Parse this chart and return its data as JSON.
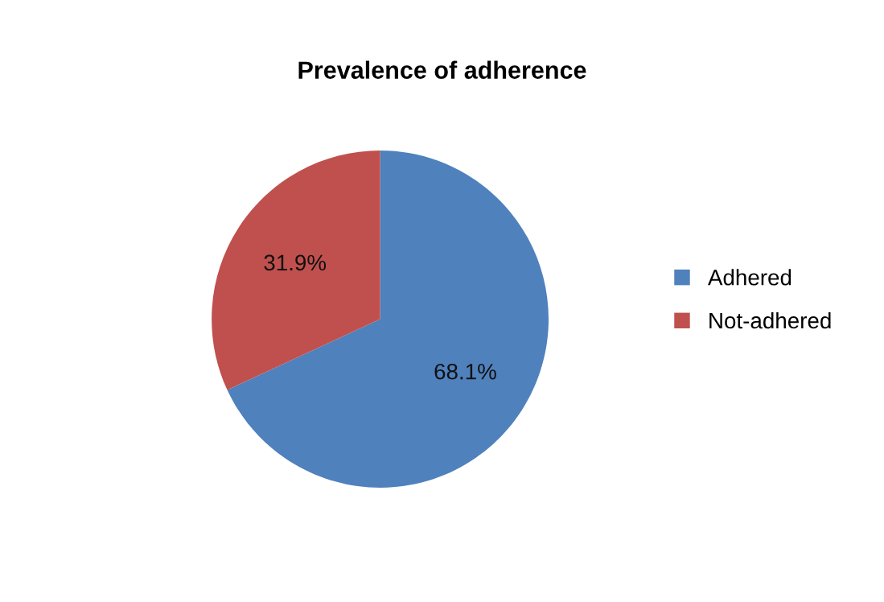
{
  "chart_data": {
    "type": "pie",
    "title": "Prevalence of adherence",
    "categories": [
      "Adhered",
      "Not-adhered"
    ],
    "values": [
      68.1,
      31.9
    ],
    "colors": [
      "#4f81bd",
      "#c0504d"
    ],
    "value_labels": [
      "68.1%",
      "31.9%"
    ],
    "legend": "right"
  }
}
